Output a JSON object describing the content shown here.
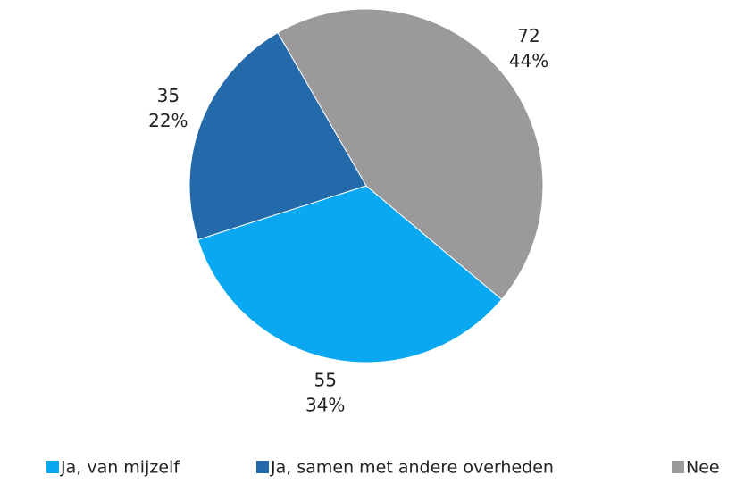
{
  "chart_data": {
    "type": "pie",
    "categories": [
      "Ja, van mijzelf",
      "Ja, samen met andere overheden",
      "Nee"
    ],
    "values": [
      55,
      35,
      72
    ],
    "percent_labels": [
      "34%",
      "22%",
      "44%"
    ],
    "colors": [
      "#0aa8f0",
      "#246aaa",
      "#9b999a"
    ],
    "legend": "bottom"
  }
}
